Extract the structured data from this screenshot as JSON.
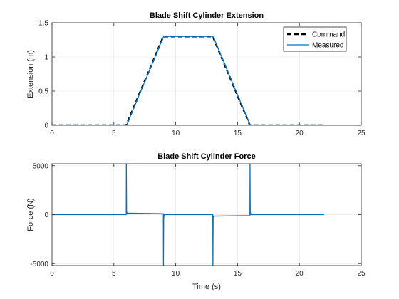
{
  "figure": {
    "background": "#ffffff"
  },
  "colors": {
    "command": "#000000",
    "measured": "#0072bd",
    "grid": "#e3e3e3",
    "axis": "#262626"
  },
  "chart_data": [
    {
      "type": "line",
      "title": "Blade Shift Cylinder Extension",
      "xlabel": "",
      "ylabel": "Extension (m)",
      "xlim": [
        0,
        25
      ],
      "ylim": [
        0,
        1.5
      ],
      "xticks": [
        0,
        5,
        10,
        15,
        20,
        25
      ],
      "xtick_labels": [
        "0",
        "5",
        "10",
        "15",
        "20",
        "25"
      ],
      "yticks": [
        0,
        0.5,
        1,
        1.5
      ],
      "ytick_labels": [
        "0",
        "0.5",
        "1",
        "1.5"
      ],
      "grid": true,
      "legend": {
        "position": "top-right",
        "entries": [
          "Command",
          "Measured"
        ]
      },
      "series": [
        {
          "name": "Command",
          "style": "dashed",
          "color": "#000000",
          "x": [
            0,
            6,
            9,
            13,
            16,
            22
          ],
          "y": [
            0,
            0,
            1.3,
            1.3,
            0,
            0
          ]
        },
        {
          "name": "Measured",
          "style": "solid",
          "color": "#0072bd",
          "x": [
            0,
            6,
            6.05,
            9,
            9.05,
            13,
            13.05,
            16,
            16.05,
            22
          ],
          "y": [
            0,
            0,
            0.01,
            1.29,
            1.3,
            1.3,
            1.29,
            0.01,
            0,
            0
          ]
        }
      ]
    },
    {
      "type": "line",
      "title": "Blade Shift Cylinder Force",
      "xlabel": "Time (s)",
      "ylabel": "Force (N)",
      "xlim": [
        0,
        25
      ],
      "ylim": [
        -5200,
        5200
      ],
      "xticks": [
        0,
        5,
        10,
        15,
        20,
        25
      ],
      "xtick_labels": [
        "0",
        "5",
        "10",
        "15",
        "20",
        "25"
      ],
      "yticks": [
        -5000,
        0,
        5000
      ],
      "ytick_labels": [
        "-5000",
        "0",
        "5000"
      ],
      "grid": true,
      "series": [
        {
          "color": "#0072bd",
          "style": "solid",
          "x": [
            0,
            6,
            6.01,
            6.03,
            6.08,
            9,
            9.01,
            9.03,
            9.08,
            13,
            13.01,
            13.03,
            13.08,
            16,
            16.01,
            16.03,
            16.08,
            22
          ],
          "y": [
            0,
            0,
            5200,
            300,
            150,
            100,
            -5200,
            -300,
            0,
            0,
            -5200,
            -300,
            -150,
            -100,
            5200,
            300,
            0,
            0
          ]
        }
      ]
    }
  ]
}
